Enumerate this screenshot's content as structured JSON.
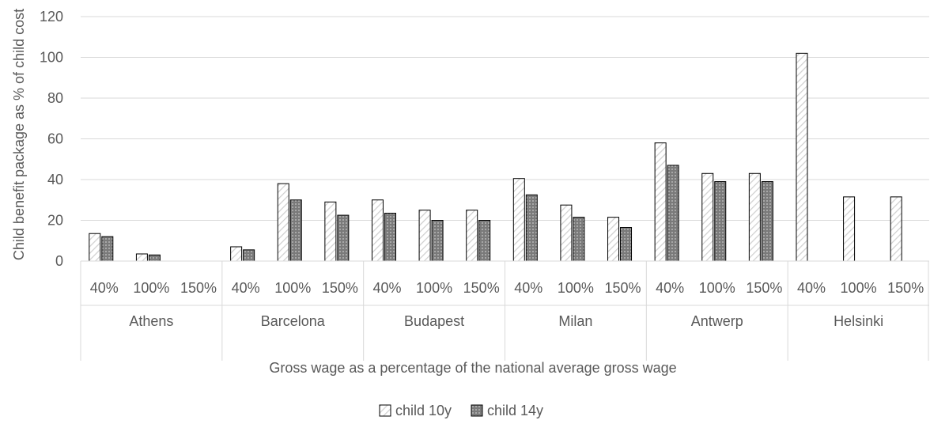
{
  "chart_data": {
    "type": "bar",
    "title": "",
    "xlabel": "Gross wage as a percentage of the national average gross wage",
    "ylabel": "Child benefit package as % of child cost",
    "ylim": [
      0,
      120
    ],
    "yticks": [
      0,
      20,
      40,
      60,
      80,
      100,
      120
    ],
    "grid": true,
    "legend_position": "bottom",
    "groups": [
      {
        "city": "Athens",
        "levels": [
          "40%",
          "100%",
          "150%"
        ]
      },
      {
        "city": "Barcelona",
        "levels": [
          "40%",
          "100%",
          "150%"
        ]
      },
      {
        "city": "Budapest",
        "levels": [
          "40%",
          "100%",
          "150%"
        ]
      },
      {
        "city": "Milan",
        "levels": [
          "40%",
          "100%",
          "150%"
        ]
      },
      {
        "city": "Antwerp",
        "levels": [
          "40%",
          "100%",
          "150%"
        ]
      },
      {
        "city": "Helsinki",
        "levels": [
          "40%",
          "100%",
          "150%"
        ]
      }
    ],
    "series": [
      {
        "name": "child 10y",
        "pattern": "light-hatched",
        "color": "#ffffff",
        "values": [
          13.5,
          3.5,
          0,
          7,
          38,
          29,
          30,
          25,
          25,
          40.5,
          27.5,
          21.5,
          58,
          43,
          43,
          102,
          31.5,
          31.5
        ]
      },
      {
        "name": "child 14y",
        "pattern": "dark-dotted",
        "color": "#808080",
        "values": [
          12,
          3,
          0,
          5.5,
          30,
          22.5,
          23.5,
          20,
          20,
          32.5,
          21.5,
          16.5,
          47,
          39,
          39,
          0,
          0,
          0
        ]
      }
    ]
  }
}
